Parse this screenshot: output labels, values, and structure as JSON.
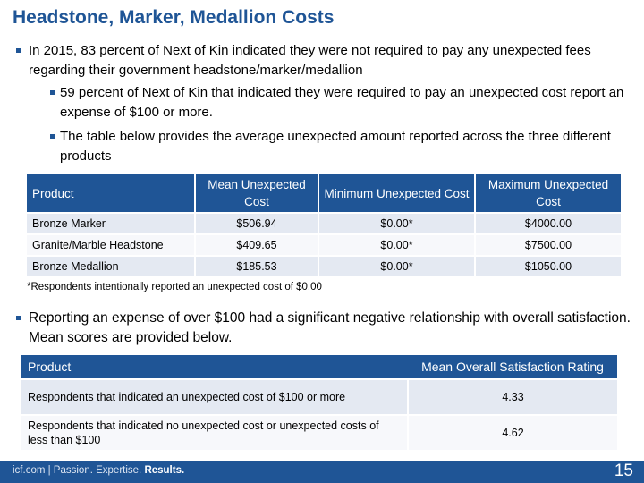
{
  "slide": {
    "title": "Headstone, Marker, Medallion Costs",
    "bullets": {
      "b1": "In 2015, 83 percent of Next of Kin indicated they were not required to pay any unexpected fees regarding their government headstone/marker/medallion",
      "b2": "59 percent of Next of Kin that indicated they were required to pay an unexpected cost report an expense of $100 or more.",
      "b3": "The table below provides the average unexpected amount reported across the three different products",
      "b4": "Reporting an expense of over $100 had a significant negative relationship with overall satisfaction. Mean scores are provided below."
    },
    "footnote": "*Respondents intentionally reported an unexpected cost of $0.00"
  },
  "cost_table": {
    "headers": [
      "Product",
      "Mean Unexpected Cost",
      "Minimum Unexpected Cost",
      "Maximum Unexpected Cost"
    ],
    "rows": [
      [
        "Bronze Marker",
        "$506.94",
        "$0.00*",
        "$4000.00"
      ],
      [
        "Granite/Marble Headstone",
        "$409.65",
        "$0.00*",
        "$7500.00"
      ],
      [
        "Bronze Medallion",
        "$185.53",
        "$0.00*",
        "$1050.00"
      ]
    ]
  },
  "satisfaction_table": {
    "headers": [
      "Product",
      "Mean Overall Satisfaction Rating"
    ],
    "rows": [
      [
        "Respondents that indicated an unexpected cost of $100 or more",
        "4.33"
      ],
      [
        "Respondents that indicated no unexpected cost or unexpected costs of less than $100",
        "4.62"
      ]
    ]
  },
  "footer": {
    "brand_prefix": "icf.com | Passion. Expertise.",
    "brand_bold": "Results.",
    "page_number": "15"
  },
  "colors": {
    "brand_blue": "#1f5596",
    "row_shade": "#e4e9f2",
    "row_light": "#f7f8fb"
  }
}
